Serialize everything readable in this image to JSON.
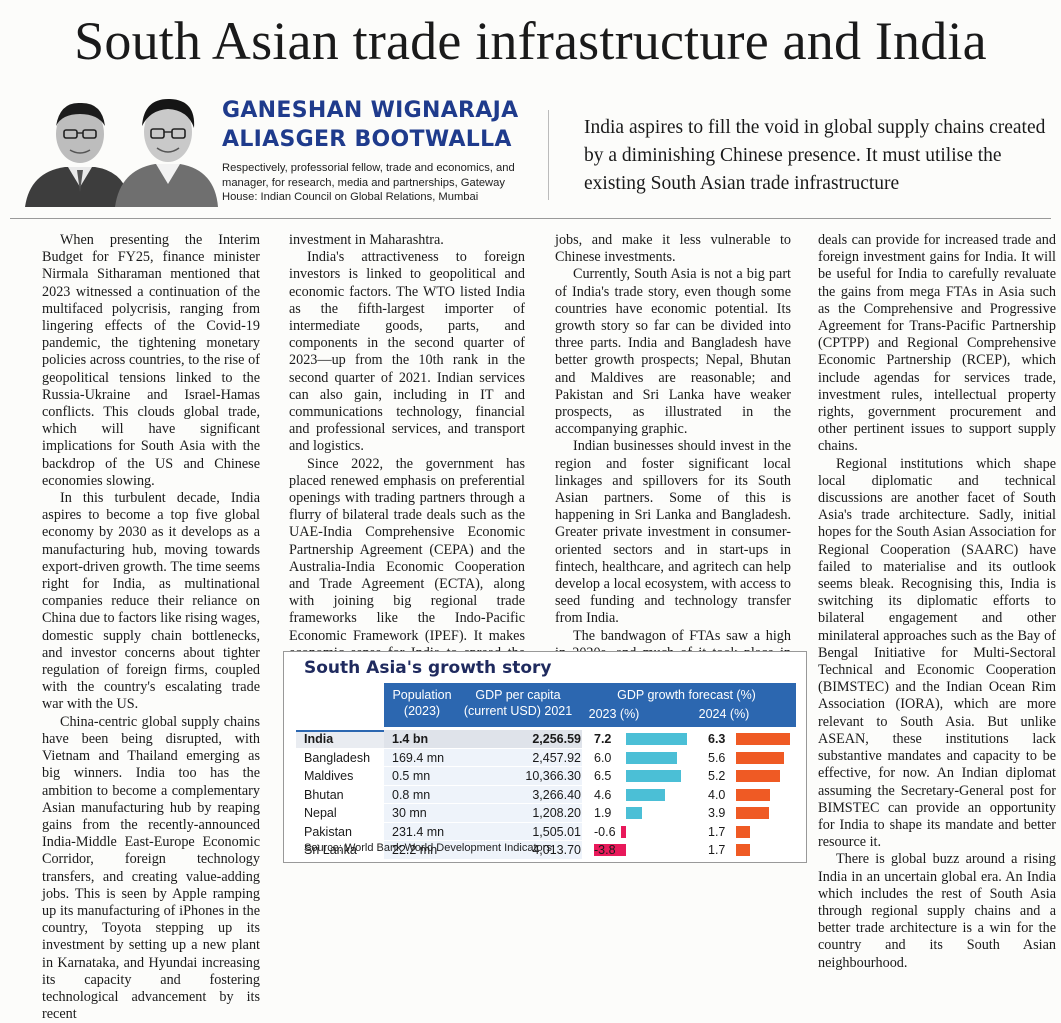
{
  "headline": "South Asian trade infrastructure and India",
  "authors": [
    "GANESHAN WIGNARAJA",
    "ALIASGER BOOTWALLA"
  ],
  "affiliation": "Respectively, professorial fellow, trade and economics, and manager, for research, media and partnerships, Gateway House: Indian Council on Global Relations, Mumbai",
  "standfirst": "India aspires to fill the void in global supply chains created by a diminishing Chinese presence. It must utilise the existing South Asian trade infrastructure",
  "columns": {
    "col1": [
      "When presenting the Interim Budget for FY25, finance minister Nirmala Sitharaman mentioned that 2023 witnessed a continuation of the multifaced polycrisis, ranging from lingering effects of the Covid-19 pandemic, the tightening monetary policies across countries, to the rise of geopolitical tensions linked to the Russia-Ukraine and Israel-Hamas conflicts. This clouds global trade, which will have significant implications for South Asia with the backdrop of the US and Chinese economies slowing.",
      "In this turbulent decade, India aspires to become a top five global economy by 2030 as it develops as a manufacturing hub, moving towards export-driven growth. The time seems right for India, as multinational companies reduce their reliance on China due to factors like rising wages, domestic supply chain bottlenecks, and investor concerns about tighter regulation of foreign firms, coupled with the country's escalating trade war with the US.",
      "China-centric global supply chains have been being disrupted, with Vietnam and Thailand emerging as big winners. India too has the ambition to become a complementary Asian manufacturing hub by reaping gains from the recently-announced India-Middle East-Europe Economic Corridor, foreign technology transfers, and creating value-adding jobs. This is seen by Apple ramping up its manufacturing of iPhones in the country, Toyota stepping up its investment by setting up a new plant in Karnataka, and Hyundai increasing its capacity and fostering technological advancement by its recent"
    ],
    "col2": [
      "investment in Maharashtra.",
      "India's attractiveness to foreign investors is linked to geopolitical and economic factors. The WTO listed India as the fifth-largest importer of intermediate goods, parts, and components in the second quarter of 2023—up from the 10th rank in the second quarter of 2021. Indian services can also gain, including in IT and communications technology, financial and professional services, and transport and logistics.",
      "Since 2022, the government has placed renewed emphasis on preferential openings with trading partners through a flurry of bilateral trade deals such as the UAE-India Comprehensive Economic Partnership Agreement (CEPA) and the Australia-India Economic Cooperation and Trade Agreement (ECTA), along with joining big regional trade frameworks like the Indo-Pacific Economic Framework (IPEF). It makes economic sense for India to spread the gains from this trade regionally. It will stabilise the region, increase"
    ],
    "col3": [
      "jobs, and make it less vulnerable to Chinese investments.",
      "Currently, South Asia is not a big part of India's trade story, even though some countries have economic potential. Its growth story so far can be divided into three parts. India and Bangladesh have better growth prospects; Nepal, Bhutan and Maldives are reasonable; and Pakistan and Sri Lanka have weaker prospects, as illustrated in the accompanying graphic.",
      "Indian businesses should invest in the region and foster significant local linkages and spillovers for its South Asian partners. Some of this is happening in Sri Lanka and Bangladesh. Greater private investment in consumer-oriented sectors and in start-ups in fintech, healthcare, and agritech can help develop a local ecosystem, with access to seed funding and technology transfer from India.",
      "The bandwagon of FTAs saw a high in 2020s, and much of it took place in East Asia with Japan, China, Korea, and Singapore at the forefront. Over time, these"
    ],
    "col4": [
      "deals can provide for increased trade and foreign investment gains for India. It will be useful for India to carefully revaluate the gains from mega FTAs in Asia such as the Comprehensive and Progressive Agreement for Trans-Pacific Partnership (CPTPP) and Regional Comprehensive Economic Partnership (RCEP), which include agendas for services trade, investment rules, intellectual property rights, government procurement and other pertinent issues to support supply chains.",
      "Regional institutions which shape local diplomatic and technical discussions are another facet of South Asia's trade architecture. Sadly, initial hopes for the South Asian Association for Regional Cooperation (SAARC) have failed to materialise and its outlook seems bleak. Recognising this, India is switching its diplomatic efforts to bilateral engagement and other minilateral approaches such as the Bay of Bengal Initiative for Multi-Sectoral Technical and Economic Cooperation (BIMSTEC) and the Indian Ocean Rim Association (IORA), which are more relevant to South Asia. But unlike ASEAN, these institutions lack substantive mandates and capacity to be effective, for now. An Indian diplomat assuming the Secretary-General post for BIMSTEC can provide an opportunity for India to shape its mandate and better resource it.",
      "There is global buzz around a rising India in an uncertain global era. An India which includes the rest of South Asia through regional supply chains and a better trade architecture is a win for the country and its South Asian neighbourhood."
    ]
  },
  "table": {
    "title": "South Asia's growth story",
    "headers": {
      "population": "Population",
      "population_year": "(2023)",
      "gdp_pc": "GDP per capita",
      "gdp_pc_unit": "(current USD) 2021",
      "forecast": "GDP growth forecast (%)",
      "y2023": "2023 (%)",
      "y2024": "2024 (%)"
    },
    "colors": {
      "header": "#2c67b0",
      "bar2023": "#4bbfd6",
      "bar2024": "#ef5a24",
      "negative": "#e8195a",
      "india_row": "#dfe3ea"
    },
    "rows": [
      {
        "country": "India",
        "population": "1.4 bn",
        "gdp_pc": "2,256.59",
        "g2023_label": "7.2",
        "g2023": 7.2,
        "g2024_label": "6.3",
        "g2024": 6.3
      },
      {
        "country": "Bangladesh",
        "population": "169.4 mn",
        "gdp_pc": "2,457.92",
        "g2023_label": "6.0",
        "g2023": 6.0,
        "g2024_label": "5.6",
        "g2024": 5.6
      },
      {
        "country": "Maldives",
        "population": "0.5 mn",
        "gdp_pc": "10,366.30",
        "g2023_label": "6.5",
        "g2023": 6.5,
        "g2024_label": "5.2",
        "g2024": 5.2
      },
      {
        "country": "Bhutan",
        "population": "0.8 mn",
        "gdp_pc": "3,266.40",
        "g2023_label": "4.6",
        "g2023": 4.6,
        "g2024_label": "4.0",
        "g2024": 4.0
      },
      {
        "country": "Nepal",
        "population": "30 mn",
        "gdp_pc": "1,208.20",
        "g2023_label": "1.9",
        "g2023": 1.9,
        "g2024_label": "3.9",
        "g2024": 3.9
      },
      {
        "country": "Pakistan",
        "population": "231.4 mn",
        "gdp_pc": "1,505.01",
        "g2023_label": "-0.6",
        "g2023": -0.6,
        "g2024_label": "1.7",
        "g2024": 1.7
      },
      {
        "country": "Sri Lanka",
        "population": "22.2 mn",
        "gdp_pc": "4,013.70",
        "g2023_label": "-3.8",
        "g2023": -3.8,
        "g2024_label": "1.7",
        "g2024": 1.7
      }
    ],
    "source": "Source: World Bank World Development Indicators"
  }
}
